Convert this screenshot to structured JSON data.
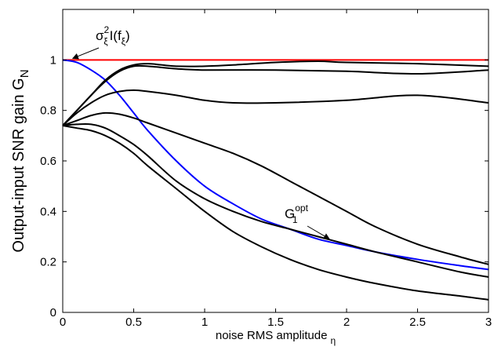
{
  "chart_data": {
    "type": "line",
    "title": "",
    "xlabel": "noise RMS amplitude",
    "xlabel_sub": "η",
    "ylabel": "Output-input SNR gain G",
    "ylabel_sub": "N",
    "xlim": [
      0,
      3
    ],
    "ylim": [
      0,
      1.2
    ],
    "xticks": [
      0,
      0.5,
      1,
      1.5,
      2,
      2.5,
      3
    ],
    "xtick_labels": [
      "0",
      "0.5",
      "1",
      "1.5",
      "2",
      "2.5",
      "3"
    ],
    "yticks": [
      0,
      0.2,
      0.4,
      0.6,
      0.8,
      1
    ],
    "ytick_labels": [
      "0",
      "0.2",
      "0.4",
      "0.6",
      "0.8",
      "1"
    ],
    "grid": false,
    "series": [
      {
        "color": "#ff0000",
        "x": [
          0,
          3
        ],
        "y": [
          1.0,
          1.0
        ]
      },
      {
        "color": "#0000ff",
        "x": [
          0,
          0.1,
          0.2,
          0.3,
          0.4,
          0.5,
          0.6,
          0.8,
          1.0,
          1.2,
          1.4,
          1.6,
          1.8,
          2.0,
          2.2,
          2.5,
          2.8,
          3.0
        ],
        "y": [
          1.0,
          0.99,
          0.96,
          0.92,
          0.86,
          0.79,
          0.72,
          0.6,
          0.5,
          0.43,
          0.37,
          0.33,
          0.29,
          0.265,
          0.24,
          0.21,
          0.185,
          0.17
        ]
      },
      {
        "color": "#000000",
        "x": [
          0,
          0.1,
          0.2,
          0.3,
          0.4,
          0.5,
          0.6,
          0.7,
          0.8,
          1.0,
          1.2,
          1.5,
          1.8,
          2.0,
          2.5,
          3.0
        ],
        "y": [
          0.74,
          0.8,
          0.86,
          0.92,
          0.96,
          0.98,
          0.985,
          0.98,
          0.975,
          0.975,
          0.98,
          0.99,
          0.995,
          0.99,
          0.985,
          0.975
        ]
      },
      {
        "color": "#000000",
        "x": [
          0,
          0.1,
          0.2,
          0.3,
          0.4,
          0.5,
          0.6,
          0.8,
          1.0,
          1.5,
          2.0,
          2.5,
          3.0
        ],
        "y": [
          0.74,
          0.8,
          0.86,
          0.915,
          0.955,
          0.975,
          0.975,
          0.965,
          0.96,
          0.96,
          0.955,
          0.945,
          0.96
        ]
      },
      {
        "color": "#000000",
        "x": [
          0,
          0.1,
          0.2,
          0.3,
          0.4,
          0.5,
          0.6,
          0.8,
          1.0,
          1.2,
          1.5,
          2.0,
          2.5,
          3.0
        ],
        "y": [
          0.74,
          0.79,
          0.83,
          0.86,
          0.875,
          0.88,
          0.875,
          0.86,
          0.84,
          0.83,
          0.83,
          0.84,
          0.86,
          0.83
        ]
      },
      {
        "color": "#000000",
        "x": [
          0,
          0.1,
          0.2,
          0.3,
          0.4,
          0.5,
          0.6,
          0.8,
          1.0,
          1.2,
          1.4,
          1.6,
          1.8,
          2.0,
          2.2,
          2.5,
          2.8,
          3.0
        ],
        "y": [
          0.74,
          0.76,
          0.78,
          0.79,
          0.785,
          0.77,
          0.75,
          0.71,
          0.67,
          0.63,
          0.58,
          0.52,
          0.46,
          0.4,
          0.34,
          0.27,
          0.22,
          0.19
        ]
      },
      {
        "color": "#000000",
        "x": [
          0,
          0.1,
          0.2,
          0.3,
          0.4,
          0.5,
          0.6,
          0.8,
          1.0,
          1.2,
          1.4,
          1.6,
          1.8,
          2.0,
          2.2,
          2.5,
          2.8,
          3.0
        ],
        "y": [
          0.74,
          0.745,
          0.745,
          0.73,
          0.7,
          0.665,
          0.62,
          0.52,
          0.45,
          0.4,
          0.36,
          0.33,
          0.3,
          0.27,
          0.24,
          0.2,
          0.16,
          0.14
        ]
      },
      {
        "color": "#000000",
        "x": [
          0,
          0.1,
          0.2,
          0.3,
          0.4,
          0.5,
          0.6,
          0.8,
          1.0,
          1.2,
          1.4,
          1.6,
          1.8,
          2.0,
          2.2,
          2.5,
          2.8,
          3.0
        ],
        "y": [
          0.74,
          0.73,
          0.72,
          0.7,
          0.67,
          0.63,
          0.58,
          0.49,
          0.4,
          0.32,
          0.26,
          0.21,
          0.17,
          0.14,
          0.115,
          0.085,
          0.065,
          0.05
        ]
      }
    ],
    "annotations": [
      {
        "base": "σ",
        "sub": "ξ",
        "sup": "2",
        "rest": "I(f",
        "rest_sub": "ξ",
        "close": ")",
        "arrow_to": [
          0.06,
          1.0
        ]
      },
      {
        "base": "G",
        "sub": "1",
        "sup": "opt",
        "arrow_to": [
          1.9,
          0.285
        ]
      }
    ]
  }
}
